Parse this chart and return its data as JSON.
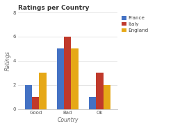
{
  "title": "Ratings per Country",
  "xlabel": "Country",
  "ylabel": "Ratings",
  "categories": [
    "Good",
    "Bad",
    "Ok"
  ],
  "series": [
    {
      "label": "France",
      "color": "#4472c4",
      "values": [
        2,
        5,
        1
      ]
    },
    {
      "label": "Italy",
      "color": "#c0392b",
      "values": [
        1,
        6,
        3
      ]
    },
    {
      "label": "England",
      "color": "#e6a817",
      "values": [
        3,
        5,
        2
      ]
    }
  ],
  "ylim": [
    0,
    8
  ],
  "yticks": [
    0,
    2,
    4,
    6,
    8
  ],
  "background_color": "#ffffff",
  "plot_bg_color": "#ffffff",
  "grid_color": "#e0e0e0",
  "bar_width": 0.22,
  "title_fontsize": 6.5,
  "axis_label_fontsize": 5.5,
  "tick_fontsize": 5.0,
  "legend_fontsize": 5.2,
  "spine_color": "#c0c0c0"
}
